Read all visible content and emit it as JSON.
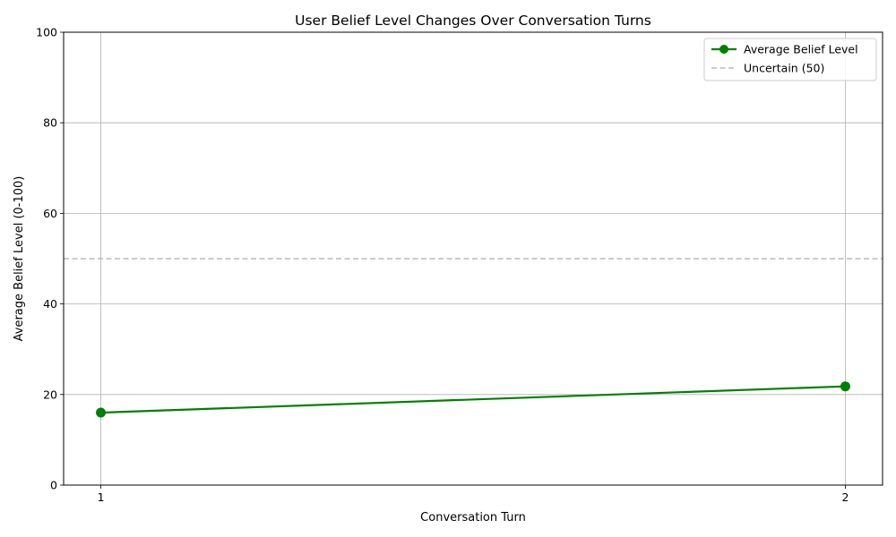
{
  "chart_data": {
    "type": "line",
    "title": "User Belief Level Changes Over Conversation Turns",
    "xlabel": "Conversation Turn",
    "ylabel": "Average Belief Level (0-100)",
    "x": [
      1,
      2
    ],
    "x_tick_labels": [
      "1",
      "2"
    ],
    "xlim": [
      0.95,
      2.05
    ],
    "ylim": [
      0,
      100
    ],
    "y_ticks": [
      0,
      20,
      40,
      60,
      80,
      100
    ],
    "grid": true,
    "legend_position": "top-right",
    "series": [
      {
        "name": "Average Belief Level",
        "values": [
          16,
          21.8
        ],
        "color": "#008000",
        "marker": "circle"
      }
    ],
    "reference_lines": [
      {
        "name": "Uncertain (50)",
        "y": 50,
        "color": "#bbbbbb",
        "style": "dashed"
      }
    ]
  }
}
